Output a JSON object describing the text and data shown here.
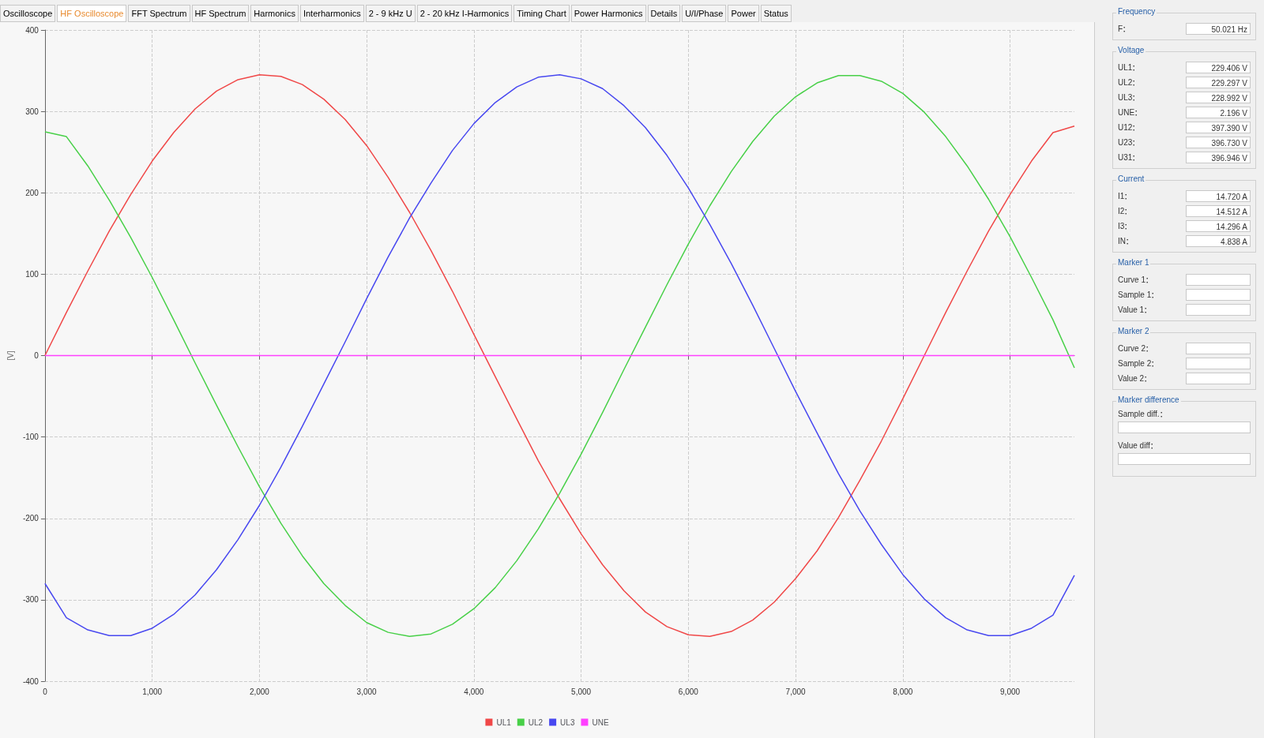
{
  "chart_data": [
    {
      "type": "line",
      "ylabel": "[V]",
      "xlim": [
        0,
        9600
      ],
      "ylim": [
        -400,
        400
      ],
      "xticks": [
        0,
        {
          "value": 1000,
          "label": "1,000"
        },
        {
          "value": 2000,
          "label": "2,000"
        },
        {
          "value": 3000,
          "label": "3,000"
        },
        {
          "value": 4000,
          "label": "4,000"
        },
        {
          "value": 5000,
          "label": "5,000"
        },
        {
          "value": 6000,
          "label": "6,000"
        },
        {
          "value": 7000,
          "label": "7,000"
        },
        {
          "value": 8000,
          "label": "8,000"
        },
        {
          "value": 9000,
          "label": "9,000"
        }
      ],
      "yticks": [
        -400,
        -300,
        -200,
        -100,
        0,
        100,
        200,
        300,
        400
      ],
      "grid": true,
      "legend": "bottom",
      "marker": "none",
      "line_style": "solid",
      "x": [
        0,
        200,
        400,
        600,
        800,
        1000,
        1200,
        1400,
        1600,
        1800,
        2000,
        2200,
        2400,
        2600,
        2800,
        3000,
        3200,
        3400,
        3600,
        3800,
        4000,
        4200,
        4400,
        4600,
        4800,
        5000,
        5200,
        5400,
        5600,
        5800,
        6000,
        6200,
        6400,
        6600,
        6800,
        7000,
        7200,
        7400,
        7600,
        7800,
        8000,
        8200,
        8400,
        8600,
        8800,
        9000,
        9200,
        9400,
        9600
      ],
      "series": [
        {
          "name": "UL1",
          "color": "#f04848",
          "values": [
            0,
            53,
            104,
            153,
            198,
            239,
            274,
            303,
            325,
            339,
            345,
            343,
            333,
            315,
            290,
            258,
            219,
            176,
            129,
            79,
            26,
            -26,
            -78,
            -129,
            -176,
            -219,
            -257,
            -289,
            -315,
            -333,
            -343,
            -345,
            -339,
            -325,
            -303,
            -274,
            -240,
            -199,
            -153,
            -105,
            -53,
            0,
            53,
            104,
            153,
            198,
            239,
            274,
            282
          ]
        },
        {
          "name": "UL2",
          "color": "#48d048",
          "values": [
            275,
            269,
            233,
            191,
            145,
            96,
            44,
            -9,
            -61,
            -112,
            -161,
            -206,
            -246,
            -280,
            -307,
            -328,
            -340,
            -345,
            -342,
            -330,
            -311,
            -285,
            -252,
            -213,
            -169,
            -121,
            -70,
            -17,
            35,
            87,
            137,
            184,
            226,
            263,
            294,
            318,
            335,
            344,
            344,
            337,
            322,
            299,
            269,
            233,
            192,
            146,
            96,
            44,
            -15
          ]
        },
        {
          "name": "UL3",
          "color": "#4848f0",
          "values": [
            -280,
            -322,
            -337,
            -344,
            -344,
            -335,
            -318,
            -294,
            -263,
            -226,
            -184,
            -137,
            -87,
            -35,
            17,
            70,
            121,
            169,
            212,
            252,
            285,
            311,
            330,
            342,
            345,
            340,
            328,
            307,
            280,
            246,
            206,
            161,
            113,
            62,
            9,
            -44,
            -95,
            -145,
            -191,
            -232,
            -269,
            -299,
            -322,
            -337,
            -344,
            -344,
            -335,
            -319,
            -270
          ]
        },
        {
          "name": "UNE",
          "color": "#ff40ff",
          "x": [
            0,
            9600
          ],
          "values": [
            0,
            0
          ]
        }
      ]
    },
    {
      "type": "other",
      "annotations": [
        "Oscilloscope",
        "HF Oscilloscope",
        "FFT Spectrum",
        "HF Spectrum",
        "Harmonics",
        "Interharmonics",
        "2 - 9 kHz U",
        "2 - 20 kHz I-Harmonics",
        "Timing Chart",
        "Power Harmonics",
        "Details",
        "U/I/Phase",
        "Power",
        "Status"
      ]
    },
    {
      "type": "other",
      "title": "Frequency",
      "categories": [
        "F"
      ],
      "value_labels": [
        "50.021 Hz"
      ]
    },
    {
      "type": "other",
      "title": "Voltage",
      "categories": [
        "UL1",
        "UL2",
        "UL3",
        "UNE",
        "U12",
        "U23",
        "U31"
      ],
      "value_labels": [
        "229.406 V",
        "229.297 V",
        "228.992 V",
        "2.196 V",
        "397.390 V",
        "396.730 V",
        "396.946 V"
      ]
    },
    {
      "type": "other",
      "title": "Current",
      "categories": [
        "I1",
        "I2",
        "I3",
        "IN"
      ],
      "value_labels": [
        "14.720 A",
        "14.512 A",
        "14.296 A",
        "4.838 A"
      ]
    },
    {
      "type": "other",
      "title": "Marker 1",
      "categories": [
        "Curve 1",
        "Sample 1",
        "Value 1"
      ],
      "value_labels": [
        null,
        null,
        null
      ]
    },
    {
      "type": "other",
      "title": "Marker 2",
      "categories": [
        "Curve 2",
        "Sample 2",
        "Value 2"
      ],
      "value_labels": [
        null,
        null,
        null
      ]
    },
    {
      "type": "other",
      "title": "Marker difference",
      "categories": [
        "Sample diff.",
        "Value diff"
      ],
      "value_labels": [
        null,
        null
      ]
    }
  ]
}
